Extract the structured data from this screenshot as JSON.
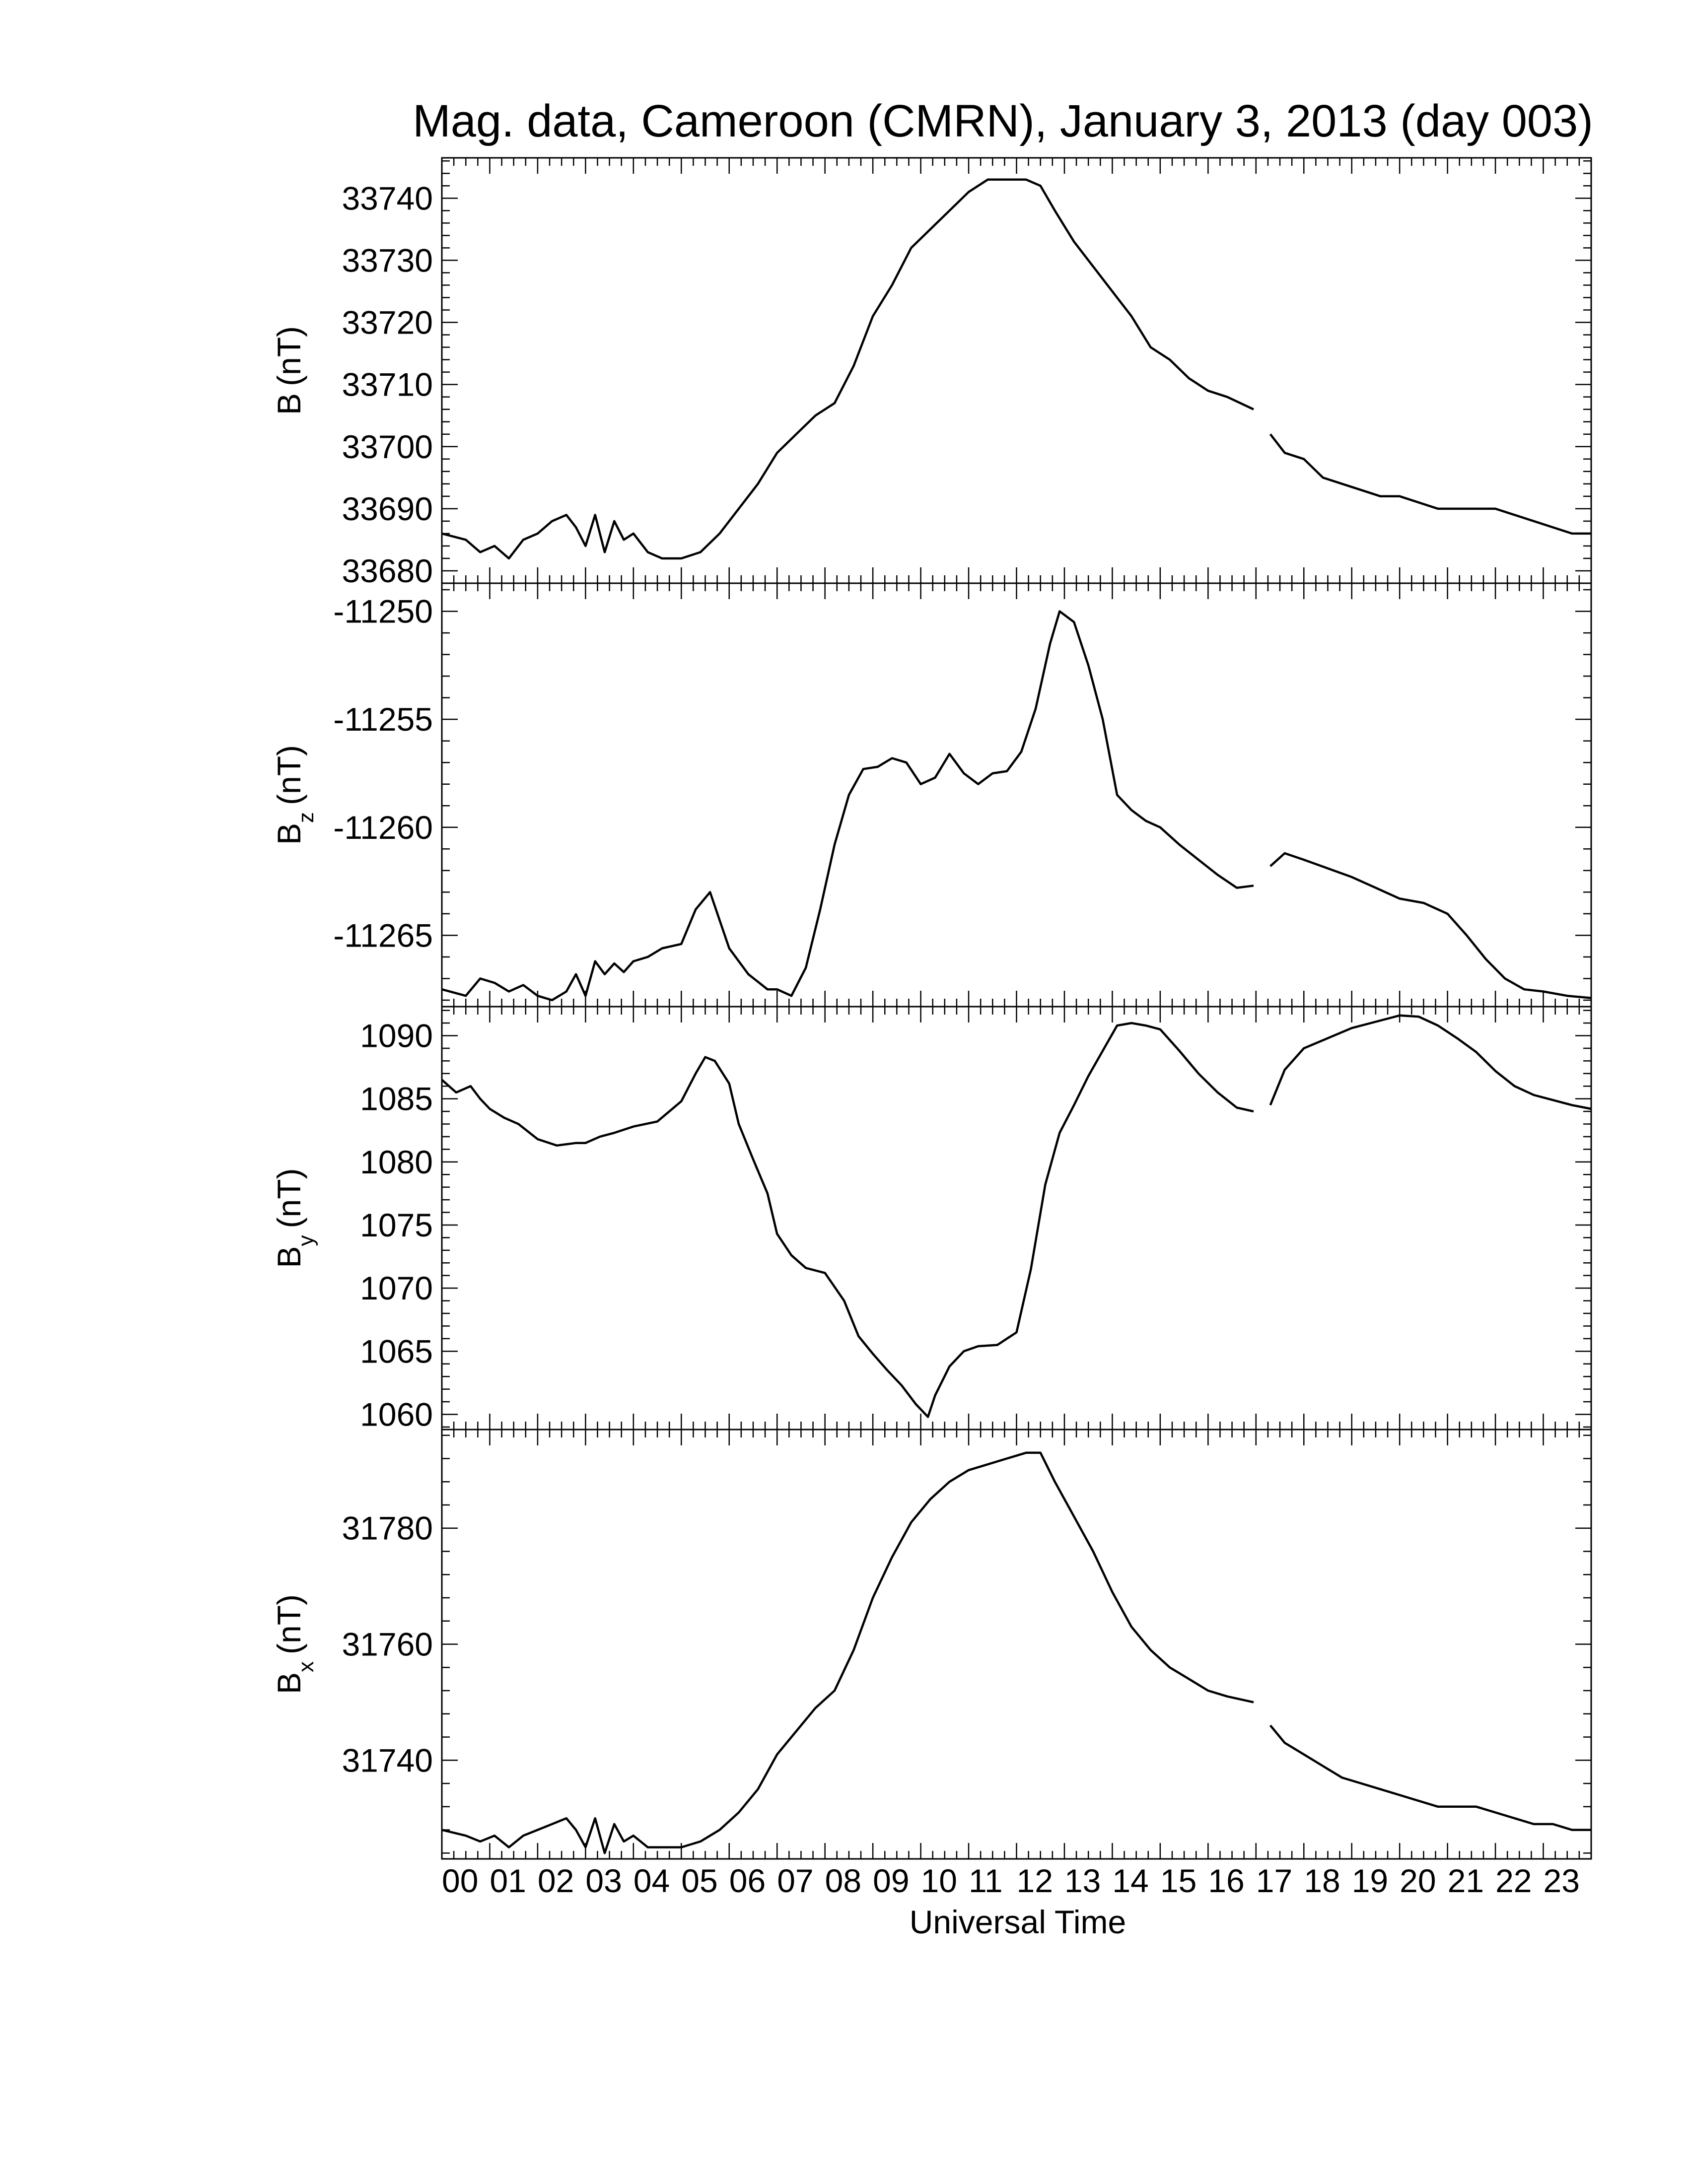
{
  "title": "Mag. data, Cameroon (CMRN), January 3, 2013 (day 003)",
  "xlabel": "Universal Time",
  "x_tick_labels": [
    "00",
    "01",
    "02",
    "03",
    "04",
    "05",
    "06",
    "07",
    "08",
    "09",
    "10",
    "11",
    "12",
    "13",
    "14",
    "15",
    "16",
    "17",
    "18",
    "19",
    "20",
    "21",
    "22",
    "23"
  ],
  "line_color": "#000000",
  "chart_data": [
    {
      "type": "line",
      "ylabel_main": "B",
      "ylabel_sub": "",
      "ylabel_unit": "(nT)",
      "xlim": [
        0,
        24
      ],
      "ylim": [
        33678,
        33746.5
      ],
      "yticks": [
        33680,
        33690,
        33700,
        33710,
        33720,
        33730,
        33740
      ],
      "gap": [
        16.95,
        17.3
      ],
      "series": [
        {
          "x": [
            0,
            0.5,
            0.8,
            1.1,
            1.4,
            1.7,
            2.0,
            2.3,
            2.6,
            2.8,
            3.0,
            3.2,
            3.4,
            3.6,
            3.8,
            4.0,
            4.3,
            4.6,
            5.0,
            5.4,
            5.8,
            6.2,
            6.6,
            7.0,
            7.4,
            7.8,
            8.2,
            8.6,
            9.0,
            9.4,
            9.8,
            10.2,
            10.6,
            11.0,
            11.4,
            11.8,
            12.2,
            12.5,
            12.8,
            13.2,
            13.6,
            14.0,
            14.4,
            14.8,
            15.2,
            15.6,
            16.0,
            16.4,
            16.95,
            17.3,
            17.6,
            18.0,
            18.4,
            18.8,
            19.2,
            19.6,
            20.0,
            20.4,
            20.8,
            21.2,
            21.6,
            22.0,
            22.4,
            22.8,
            23.2,
            23.6,
            24.0
          ],
          "y": [
            33686,
            33685,
            33683,
            33684,
            33682,
            33685,
            33686,
            33688,
            33689,
            33687,
            33684,
            33689,
            33683,
            33688,
            33685,
            33686,
            33683,
            33682,
            33682,
            33683,
            33686,
            33690,
            33694,
            33699,
            33702,
            33705,
            33707,
            33713,
            33721,
            33726,
            33732,
            33735,
            33738,
            33741,
            33743,
            33743,
            33743,
            33742,
            33738,
            33733,
            33729,
            33725,
            33721,
            33716,
            33714,
            33711,
            33709,
            33708,
            33706,
            33702,
            33699,
            33698,
            33695,
            33694,
            33693,
            33692,
            33692,
            33691,
            33690,
            33690,
            33690,
            33690,
            33689,
            33688,
            33687,
            33686,
            33686
          ]
        }
      ]
    },
    {
      "type": "line",
      "ylabel_main": "B",
      "ylabel_sub": "z",
      "ylabel_unit": "(nT)",
      "xlim": [
        0,
        24
      ],
      "ylim": [
        -11268.3,
        -11248.7
      ],
      "yticks": [
        -11265,
        -11260,
        -11255,
        -11250
      ],
      "gap": [
        16.95,
        17.3
      ],
      "series": [
        {
          "x": [
            0,
            0.5,
            0.8,
            1.1,
            1.4,
            1.7,
            2.0,
            2.3,
            2.6,
            2.8,
            3.0,
            3.2,
            3.4,
            3.6,
            3.8,
            4.0,
            4.3,
            4.6,
            5.0,
            5.3,
            5.6,
            6.0,
            6.4,
            6.8,
            7.0,
            7.3,
            7.6,
            7.9,
            8.2,
            8.5,
            8.8,
            9.1,
            9.4,
            9.7,
            10.0,
            10.3,
            10.6,
            10.9,
            11.2,
            11.5,
            11.8,
            12.1,
            12.4,
            12.7,
            12.9,
            13.2,
            13.5,
            13.8,
            14.1,
            14.4,
            14.7,
            15.0,
            15.4,
            15.8,
            16.2,
            16.6,
            16.95,
            17.3,
            17.6,
            18.0,
            18.5,
            19.0,
            19.5,
            20.0,
            20.5,
            21.0,
            21.4,
            21.8,
            22.2,
            22.6,
            23.0,
            23.5,
            24.0
          ],
          "y": [
            -11267.5,
            -11267.8,
            -11267,
            -11267.2,
            -11267.6,
            -11267.3,
            -11267.8,
            -11268,
            -11267.6,
            -11266.8,
            -11267.8,
            -11266.2,
            -11266.8,
            -11266.3,
            -11266.7,
            -11266.2,
            -11266,
            -11265.6,
            -11265.4,
            -11263.8,
            -11263,
            -11265.6,
            -11266.8,
            -11267.5,
            -11267.5,
            -11267.8,
            -11266.5,
            -11263.8,
            -11260.8,
            -11258.5,
            -11257.3,
            -11257.2,
            -11256.8,
            -11257,
            -11258,
            -11257.7,
            -11256.6,
            -11257.5,
            -11258,
            -11257.5,
            -11257.4,
            -11256.5,
            -11254.5,
            -11251.5,
            -11250,
            -11250.5,
            -11252.5,
            -11255,
            -11258.5,
            -11259.2,
            -11259.7,
            -11260,
            -11260.8,
            -11261.5,
            -11262.2,
            -11262.8,
            -11262.7,
            -11261.8,
            -11261.2,
            -11261.5,
            -11261.9,
            -11262.3,
            -11262.8,
            -11263.3,
            -11263.5,
            -11264,
            -11265,
            -11266.1,
            -11267,
            -11267.5,
            -11267.6,
            -11267.8,
            -11267.9
          ]
        }
      ]
    },
    {
      "type": "line",
      "ylabel_main": "B",
      "ylabel_sub": "y",
      "ylabel_unit": "(nT)",
      "xlim": [
        0,
        24
      ],
      "ylim": [
        1058.8,
        1092.3
      ],
      "yticks": [
        1060,
        1065,
        1070,
        1075,
        1080,
        1085,
        1090
      ],
      "gap": [
        16.95,
        17.3
      ],
      "series": [
        {
          "x": [
            0,
            0.3,
            0.6,
            0.8,
            1.0,
            1.3,
            1.6,
            2.0,
            2.4,
            2.8,
            3.0,
            3.3,
            3.6,
            4.0,
            4.5,
            5.0,
            5.3,
            5.5,
            5.7,
            6.0,
            6.2,
            6.5,
            6.8,
            7.0,
            7.3,
            7.6,
            8.0,
            8.4,
            8.7,
            9.0,
            9.3,
            9.6,
            9.9,
            10.15,
            10.3,
            10.6,
            10.9,
            11.2,
            11.6,
            12.0,
            12.3,
            12.6,
            12.9,
            13.2,
            13.5,
            13.8,
            14.1,
            14.4,
            14.7,
            15.0,
            15.4,
            15.8,
            16.2,
            16.6,
            16.95,
            17.3,
            17.6,
            18.0,
            18.5,
            19.0,
            19.5,
            20.0,
            20.4,
            20.8,
            21.2,
            21.6,
            22.0,
            22.4,
            22.8,
            23.2,
            23.6,
            24.0
          ],
          "y": [
            1086.5,
            1085.5,
            1086,
            1085,
            1084.2,
            1083.5,
            1083,
            1081.8,
            1081.3,
            1081.5,
            1081.5,
            1082,
            1082.3,
            1082.8,
            1083.2,
            1084.8,
            1087,
            1088.3,
            1088,
            1086.2,
            1083,
            1080.2,
            1077.5,
            1074.3,
            1072.6,
            1071.6,
            1071.2,
            1069,
            1066.2,
            1064.8,
            1063.5,
            1062.3,
            1060.8,
            1059.8,
            1061.5,
            1063.8,
            1065,
            1065.4,
            1065.5,
            1066.5,
            1071.5,
            1078.2,
            1082.3,
            1084.5,
            1086.8,
            1088.8,
            1090.8,
            1091,
            1090.8,
            1090.5,
            1088.8,
            1087,
            1085.5,
            1084.3,
            1084,
            1084.5,
            1087.3,
            1089,
            1089.8,
            1090.6,
            1091.1,
            1091.6,
            1091.5,
            1090.8,
            1089.8,
            1088.7,
            1087.2,
            1086,
            1085.3,
            1084.9,
            1084.5,
            1084.2
          ]
        }
      ]
    },
    {
      "type": "line",
      "ylabel_main": "B",
      "ylabel_sub": "x",
      "ylabel_unit": "(nT)",
      "xlim": [
        0,
        24
      ],
      "ylim": [
        31723,
        31797
      ],
      "yticks": [
        31740,
        31760,
        31780
      ],
      "gap": [
        16.95,
        17.3
      ],
      "series": [
        {
          "x": [
            0,
            0.5,
            0.8,
            1.1,
            1.4,
            1.7,
            2.0,
            2.3,
            2.6,
            2.8,
            3.0,
            3.2,
            3.4,
            3.6,
            3.8,
            4.0,
            4.3,
            4.6,
            5.0,
            5.4,
            5.8,
            6.2,
            6.6,
            7.0,
            7.4,
            7.8,
            8.2,
            8.6,
            9.0,
            9.4,
            9.8,
            10.2,
            10.6,
            11.0,
            11.4,
            11.8,
            12.2,
            12.5,
            12.8,
            13.2,
            13.6,
            14.0,
            14.4,
            14.8,
            15.2,
            15.6,
            16.0,
            16.4,
            16.95,
            17.3,
            17.6,
            18.0,
            18.4,
            18.8,
            19.2,
            19.6,
            20.0,
            20.4,
            20.8,
            21.2,
            21.6,
            22.0,
            22.4,
            22.8,
            23.2,
            23.6,
            24.0
          ],
          "y": [
            31728,
            31727,
            31726,
            31727,
            31725,
            31727,
            31728,
            31729,
            31730,
            31728,
            31725,
            31730,
            31724,
            31729,
            31726,
            31727,
            31725,
            31725,
            31725,
            31726,
            31728,
            31731,
            31735,
            31741,
            31745,
            31749,
            31752,
            31759,
            31768,
            31775,
            31781,
            31785,
            31788,
            31790,
            31791,
            31792,
            31793,
            31793,
            31788,
            31782,
            31776,
            31769,
            31763,
            31759,
            31756,
            31754,
            31752,
            31751,
            31750,
            31746,
            31743,
            31741,
            31739,
            31737,
            31736,
            31735,
            31734,
            31733,
            31732,
            31732,
            31732,
            31731,
            31730,
            31729,
            31729,
            31728,
            31728
          ]
        }
      ]
    }
  ]
}
